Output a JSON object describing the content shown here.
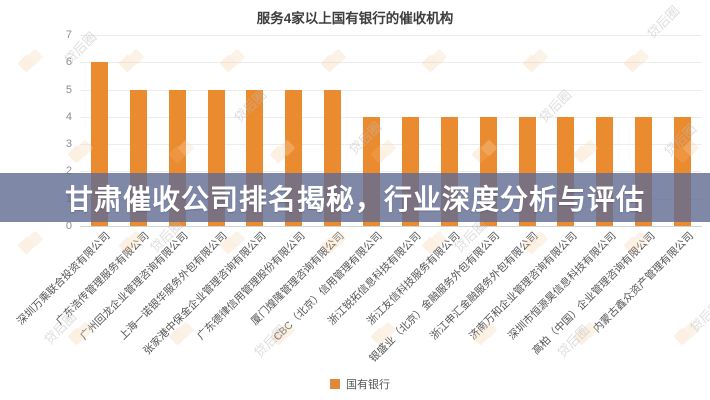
{
  "chart_data": {
    "type": "bar",
    "title": "服务4家以上国有银行的催收机构",
    "categories": [
      "深圳万乘联合投资有限公司",
      "广东浩传管理服务有限公司",
      "广州回龙企业管理咨询有限公司",
      "上海一诺银华服务外包有限公司",
      "张家港中保金企业管理咨询有限公司",
      "广东德律信用管理股份有限公司",
      "厦门煌隆管理咨询有限公司",
      "CBC（北京）信用管理有限公司",
      "浙江锐拓信息科技有限公司",
      "浙江友信科技服务有限公司",
      "银盛业（北京）金融服务外包有限公司",
      "浙江申汇金融服务外包有限公司",
      "济南万和企业管理咨询有限公司",
      "深圳市恒源昊信息科技有限公司",
      "高柏（中国）企业管理咨询有限公司",
      "内蒙古鑫众资产管理有限公司"
    ],
    "values": [
      6,
      5,
      5,
      5,
      5,
      5,
      5,
      4,
      4,
      4,
      4,
      4,
      4,
      4,
      4,
      4
    ],
    "series_name": "国有银行",
    "bar_color": "#EB8B2F",
    "xlabel": "",
    "ylabel": "",
    "ylim": [
      0,
      7
    ],
    "y_ticks": [
      0,
      1,
      2,
      3,
      4,
      5,
      6,
      7
    ],
    "grid": "horizontal",
    "legend_position": "bottom",
    "x_tick_rotation": 45
  },
  "banner": {
    "text": "甘肃催收公司排名揭秘，行业深度分析与评估",
    "background": "#8089A8",
    "background_rgba": "rgba(96,106,146,0.8)",
    "text_color": "#ffffff"
  },
  "legend": {
    "label": "国有银行",
    "swatch_color": "#E0893B"
  },
  "watermark": {
    "text": "贷后圈"
  }
}
